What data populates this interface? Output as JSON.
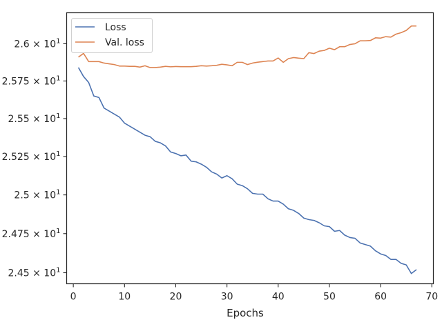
{
  "chart_data": {
    "type": "line",
    "title": "",
    "xlabel": "Epochs",
    "ylabel": "",
    "xlim": [
      -1.3,
      70.3
    ],
    "ylim": [
      24.43,
      26.21
    ],
    "yscale": "log",
    "x_ticks": [
      0,
      10,
      20,
      30,
      40,
      50,
      60,
      70
    ],
    "x_tick_labels": [
      "0",
      "10",
      "20",
      "30",
      "40",
      "50",
      "60",
      "70"
    ],
    "y_ticks": [
      {
        "value": 24.5,
        "mantissa": "2.45"
      },
      {
        "value": 24.75,
        "mantissa": "2.475"
      },
      {
        "value": 25.0,
        "mantissa": "2.5"
      },
      {
        "value": 25.25,
        "mantissa": "2.525"
      },
      {
        "value": 25.5,
        "mantissa": "2.55"
      },
      {
        "value": 25.75,
        "mantissa": "2.575"
      },
      {
        "value": 26.0,
        "mantissa": "2.6"
      }
    ],
    "y_tick_base": "10",
    "y_tick_exponent": "1",
    "grid": false,
    "legend_position": "top-left",
    "series": [
      {
        "name": "Loss",
        "color": "#4c72b0",
        "x": [
          1,
          2,
          3,
          4,
          5,
          6,
          7,
          8,
          9,
          10,
          11,
          12,
          13,
          14,
          15,
          16,
          17,
          18,
          19,
          20,
          21,
          22,
          23,
          24,
          25,
          26,
          27,
          28,
          29,
          30,
          31,
          32,
          33,
          34,
          35,
          36,
          37,
          38,
          39,
          40,
          41,
          42,
          43,
          44,
          45,
          46,
          47,
          48,
          49,
          50,
          51,
          52,
          53,
          54,
          55,
          56,
          57,
          58,
          59,
          60,
          61,
          62,
          63,
          64,
          65,
          66,
          67
        ],
        "y": [
          25.84,
          25.78,
          25.74,
          25.65,
          25.64,
          25.57,
          25.55,
          25.53,
          25.51,
          25.47,
          25.45,
          25.43,
          25.41,
          25.39,
          25.38,
          25.35,
          25.34,
          25.32,
          25.28,
          25.27,
          25.255,
          25.26,
          25.22,
          25.215,
          25.2,
          25.18,
          25.15,
          25.135,
          25.11,
          25.125,
          25.105,
          25.07,
          25.06,
          25.04,
          25.01,
          25.005,
          25.005,
          24.975,
          24.96,
          24.96,
          24.94,
          24.91,
          24.9,
          24.88,
          24.85,
          24.84,
          24.835,
          24.82,
          24.8,
          24.795,
          24.765,
          24.77,
          24.74,
          24.725,
          24.72,
          24.69,
          24.68,
          24.67,
          24.64,
          24.62,
          24.61,
          24.585,
          24.585,
          24.56,
          24.55,
          24.495,
          24.52
        ]
      },
      {
        "name": "Val. loss",
        "color": "#dd8452",
        "x": [
          1,
          2,
          3,
          4,
          5,
          6,
          7,
          8,
          9,
          10,
          11,
          12,
          13,
          14,
          15,
          16,
          17,
          18,
          19,
          20,
          21,
          22,
          23,
          24,
          25,
          26,
          27,
          28,
          29,
          30,
          31,
          32,
          33,
          34,
          35,
          36,
          37,
          38,
          39,
          40,
          41,
          42,
          43,
          44,
          45,
          46,
          47,
          48,
          49,
          50,
          51,
          52,
          53,
          54,
          55,
          56,
          57,
          58,
          59,
          60,
          61,
          62,
          63,
          64,
          65,
          66,
          67
        ],
        "y": [
          25.91,
          25.935,
          25.88,
          25.88,
          25.88,
          25.87,
          25.865,
          25.86,
          25.85,
          25.85,
          25.848,
          25.848,
          25.843,
          25.852,
          25.84,
          25.84,
          25.843,
          25.848,
          25.845,
          25.847,
          25.846,
          25.846,
          25.846,
          25.848,
          25.852,
          25.85,
          25.852,
          25.855,
          25.862,
          25.858,
          25.852,
          25.875,
          25.875,
          25.86,
          25.87,
          25.876,
          25.88,
          25.884,
          25.884,
          25.904,
          25.875,
          25.9,
          25.907,
          25.903,
          25.9,
          25.94,
          25.934,
          25.95,
          25.955,
          25.97,
          25.96,
          25.98,
          25.98,
          25.995,
          26.0,
          26.02,
          26.02,
          26.022,
          26.04,
          26.038,
          26.048,
          26.045,
          26.065,
          26.075,
          26.09,
          26.12,
          26.12
        ]
      }
    ]
  }
}
